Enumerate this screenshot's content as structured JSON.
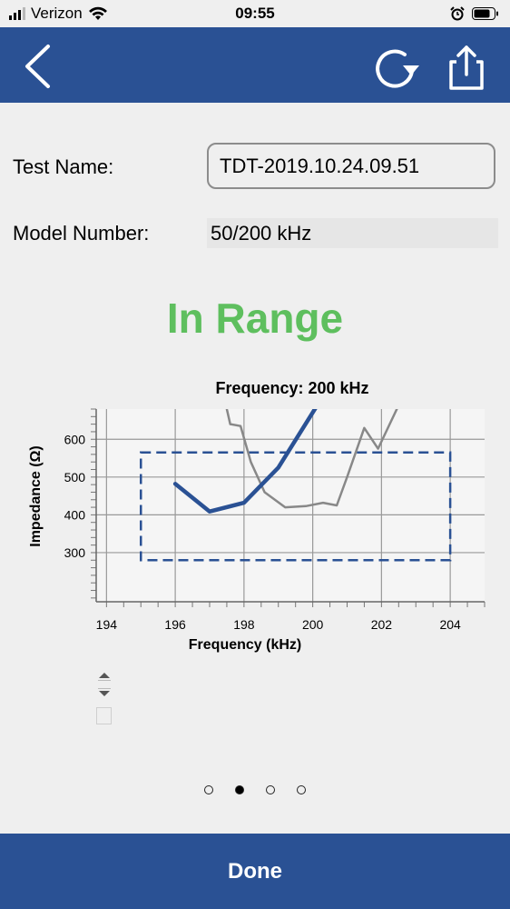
{
  "status_bar": {
    "carrier": "Verizon",
    "time": "09:55"
  },
  "nav": {
    "back_icon": "chevron-left-icon",
    "refresh_icon": "refresh-icon",
    "share_icon": "share-icon",
    "color": "#2a5194"
  },
  "form": {
    "test_name_label": "Test Name:",
    "test_name_value": "TDT-2019.10.24.09.51",
    "model_number_label": "Model Number:",
    "model_number_value": "50/200 kHz"
  },
  "result": {
    "status": "In Range",
    "color": "#5ebf5e"
  },
  "chart_data": {
    "type": "line",
    "title": "Frequency: 200 kHz",
    "xlabel": "Frequency (kHz)",
    "ylabel": "Impedance (Ω)",
    "xlim": [
      193.7,
      205
    ],
    "ylim": [
      170,
      680
    ],
    "x_ticks": [
      194,
      196,
      198,
      200,
      202,
      204
    ],
    "y_ticks": [
      300,
      400,
      500,
      600
    ],
    "grid": true,
    "series": [
      {
        "color": "#888888",
        "values": [
          [
            197.2,
            800
          ],
          [
            197.6,
            640
          ],
          [
            197.9,
            635
          ],
          [
            198.2,
            540
          ],
          [
            198.6,
            460
          ],
          [
            199.2,
            420
          ],
          [
            199.8,
            423
          ],
          [
            200.3,
            432
          ],
          [
            200.7,
            425
          ],
          [
            201.0,
            500
          ],
          [
            201.5,
            630
          ],
          [
            201.9,
            575
          ],
          [
            202.5,
            690
          ]
        ]
      },
      {
        "color": "#2a5194",
        "values": [
          [
            196.0,
            482
          ],
          [
            197.0,
            409
          ],
          [
            198.0,
            432
          ],
          [
            199.0,
            525
          ],
          [
            200.2,
            700
          ]
        ]
      }
    ],
    "range_box": {
      "x": [
        195.0,
        204.0
      ],
      "y": [
        280,
        565
      ],
      "color": "#2a5194"
    }
  },
  "pager": {
    "count": 4,
    "active": 1
  },
  "footer": {
    "done_label": "Done"
  }
}
